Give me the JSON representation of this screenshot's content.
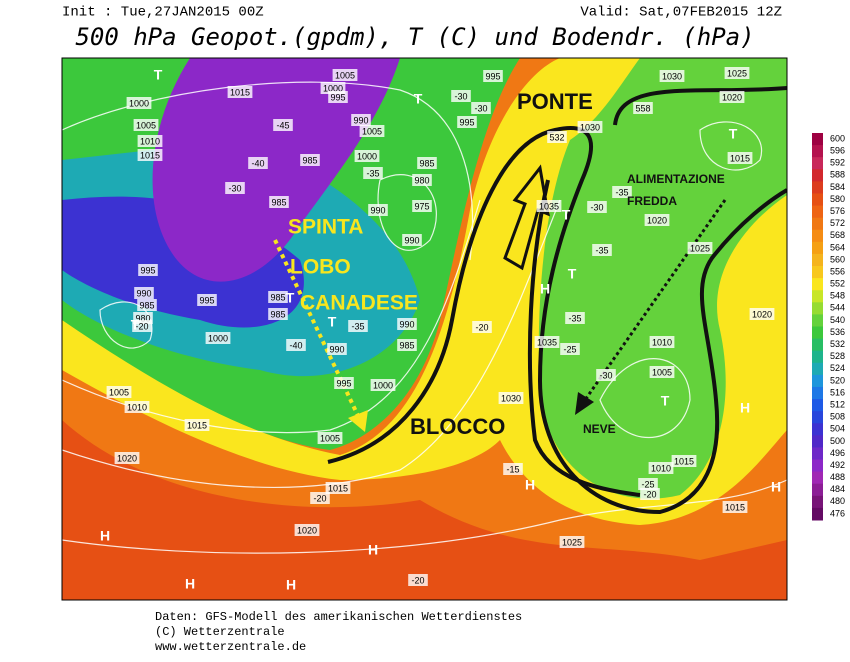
{
  "header": {
    "init": "Init : Tue,27JAN2015 00Z",
    "valid": "Valid: Sat,07FEB2015 12Z",
    "title": "500 hPa Geopot.(gpdm), T (C) und Bodendr. (hPa)"
  },
  "map": {
    "annotations": [
      "PONTE",
      "SPINTA",
      "LOBO",
      "CANADESE",
      "BLOCCO",
      "ALIMENTAZIONE",
      "FREDDA",
      "NEVE"
    ],
    "contour_labels": [
      "1015",
      "1000",
      "1005",
      "1010",
      "1015",
      "1000",
      "995",
      "1005",
      "-45",
      "990",
      "1005",
      "1000",
      "985",
      "-40",
      "-35",
      "985",
      "980",
      "975",
      "990",
      "990",
      "985",
      "-30",
      "995",
      "990",
      "985",
      "980",
      "-20",
      "995",
      "1000",
      "985",
      "985",
      "-40",
      "990",
      "-35",
      "990",
      "985",
      "995",
      "1000",
      "1005",
      "1010",
      "1015",
      "1020",
      "1005",
      "1015",
      "-20",
      "1020",
      "995",
      "-30",
      "-30",
      "995",
      "1030",
      "532",
      "1030",
      "1025",
      "1020",
      "-35",
      "1035",
      "-30",
      "1020",
      "1015",
      "1025",
      "1020",
      "-35",
      "-35",
      "-25",
      "1035",
      "-20",
      "1030",
      "-30",
      "1010",
      "1005",
      "-15",
      "-25",
      "-20",
      "1015",
      "1010",
      "1015",
      "1025",
      "-20",
      "558"
    ],
    "pressure_centers": [
      "T",
      "T",
      "T",
      "T",
      "T",
      "T",
      "T",
      "T",
      "T",
      "H",
      "H",
      "H",
      "H",
      "H",
      "H",
      "H",
      "H"
    ]
  },
  "color_scale": {
    "levels": [
      600,
      596,
      592,
      588,
      584,
      580,
      576,
      572,
      568,
      564,
      560,
      556,
      552,
      548,
      544,
      540,
      536,
      532,
      528,
      524,
      520,
      516,
      512,
      508,
      504,
      500,
      496,
      492,
      488,
      484,
      480,
      476
    ],
    "colors": [
      "#9e0142",
      "#b4124e",
      "#c8285a",
      "#d2282d",
      "#dc3c1e",
      "#e65014",
      "#ee6414",
      "#f07814",
      "#f58c14",
      "#f5a014",
      "#f5b41e",
      "#f8c81e",
      "#fae61e",
      "#c8e628",
      "#96dc32",
      "#64d23c",
      "#3cc83c",
      "#28be64",
      "#1eb48c",
      "#1eaab4",
      "#1e96dc",
      "#1e78e6",
      "#1e5ae6",
      "#2846dc",
      "#3c32d2",
      "#5028c8",
      "#6e28c8",
      "#8c28c8",
      "#a028b4",
      "#8c1e96",
      "#781478",
      "#640a64"
    ]
  },
  "footer": [
    "Daten: GFS-Modell des amerikanischen Wetterdienstes",
    "(C) Wetterzentrale",
    "www.wetterzentrale.de"
  ]
}
